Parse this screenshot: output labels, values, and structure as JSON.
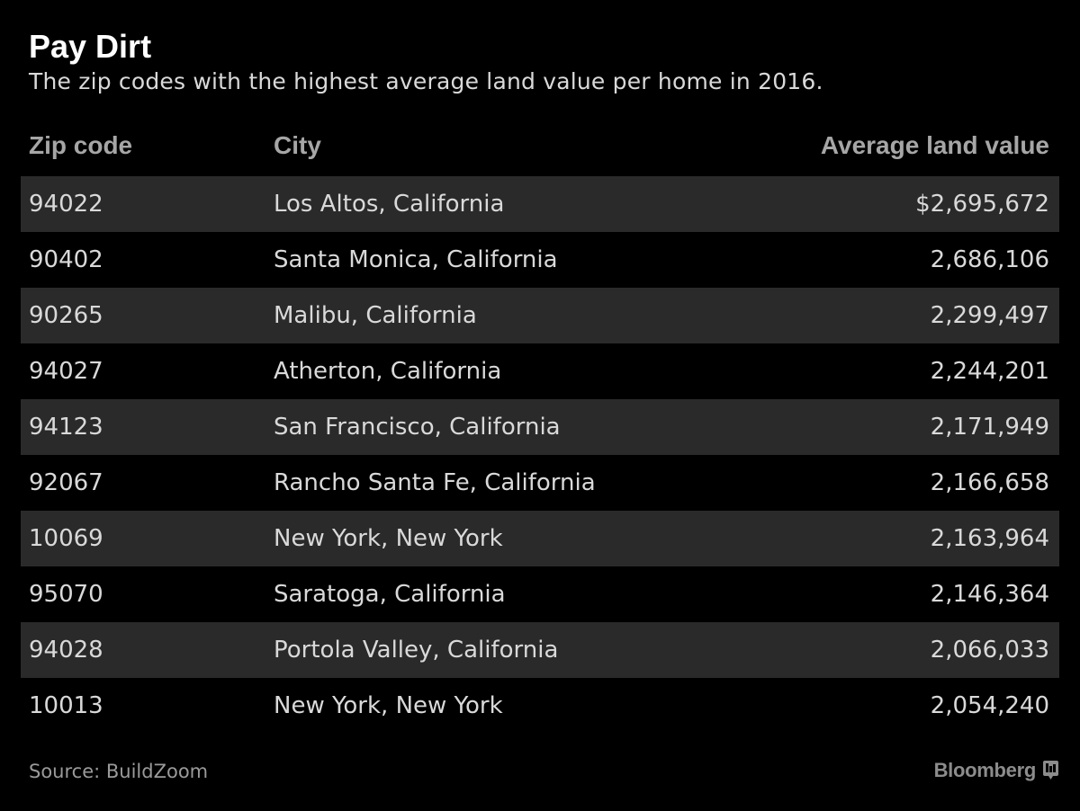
{
  "header": {
    "title": "Pay Dirt",
    "subtitle": "The zip codes with the highest average land value per home in 2016."
  },
  "table": {
    "columns": [
      "Zip code",
      "City",
      "Average land value"
    ],
    "rows": [
      {
        "zip": "94022",
        "city": "Los Altos, California",
        "value": "$2,695,672"
      },
      {
        "zip": "90402",
        "city": "Santa Monica, California",
        "value": "2,686,106"
      },
      {
        "zip": "90265",
        "city": "Malibu, California",
        "value": "2,299,497"
      },
      {
        "zip": "94027",
        "city": "Atherton, California",
        "value": "2,244,201"
      },
      {
        "zip": "94123",
        "city": "San Francisco, California",
        "value": "2,171,949"
      },
      {
        "zip": "92067",
        "city": "Rancho Santa Fe, California",
        "value": "2,166,658"
      },
      {
        "zip": "10069",
        "city": "New York, New York",
        "value": "2,163,964"
      },
      {
        "zip": "95070",
        "city": "Saratoga, California",
        "value": "2,146,364"
      },
      {
        "zip": "94028",
        "city": "Portola Valley, California",
        "value": "2,066,033"
      },
      {
        "zip": "10013",
        "city": "New York, New York",
        "value": "2,054,240"
      }
    ]
  },
  "chart_data": {
    "type": "table",
    "title": "Pay Dirt",
    "subtitle": "The zip codes with the highest average land value per home in 2016.",
    "columns": [
      "Zip code",
      "City",
      "Average land value"
    ],
    "rows": [
      [
        "94022",
        "Los Altos, California",
        2695672
      ],
      [
        "90402",
        "Santa Monica, California",
        2686106
      ],
      [
        "90265",
        "Malibu, California",
        2299497
      ],
      [
        "94027",
        "Atherton, California",
        2244201
      ],
      [
        "94123",
        "San Francisco, California",
        2171949
      ],
      [
        "92067",
        "Rancho Santa Fe, California",
        2166658
      ],
      [
        "10069",
        "New York, New York",
        2163964
      ],
      [
        "95070",
        "Saratoga, California",
        2146364
      ],
      [
        "94028",
        "Portola Valley, California",
        2066033
      ],
      [
        "10013",
        "New York, New York",
        2054240
      ]
    ]
  },
  "footer": {
    "source": "Source: BuildZoom",
    "brand": "Bloomberg",
    "brand_icon": "bloomberg-terminal-icon"
  },
  "colors": {
    "background": "#000000",
    "row_shade": "#2a2a2a",
    "title": "#ffffff",
    "header_text": "#a6a6a6",
    "body_text": "#d9d9d9"
  }
}
